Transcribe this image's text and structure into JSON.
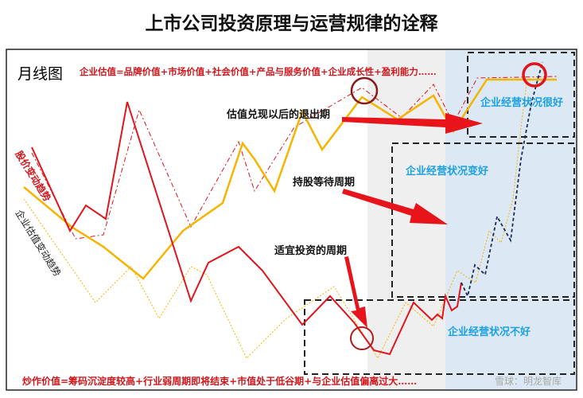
{
  "title": "上市公司投资原理与运营规律的诠释",
  "chart_label": "月线图",
  "valuation_formula": "企业估值=品牌价值+市场价值+社会价值+产品与服务价值+企业成长性+盈利能力……",
  "speculation_formula": "炒作价值=筹码沉淀度较高+行业弱周期即将结束+市值处于低谷期+与企业估值偏离过大……",
  "series_labels": {
    "price": "股价变动趋势",
    "valuation": "企业估值变动趋势"
  },
  "annotations": {
    "exit_period": "估值兑现以后的退出期",
    "holding_period": "持股等待周期",
    "invest_period": "适宜投资的周期"
  },
  "zones": {
    "very_good": "企业经营状况很好",
    "improving": "企业经营状况变好",
    "bad": "企业经营状况不好"
  },
  "watermark": "雪球：明龙智库",
  "colors": {
    "price": "#e0141b",
    "valuation": "#f5b400",
    "zone_label": "#1ba1e2",
    "growth": "#1a2a5a",
    "gray_zone": "#efefef",
    "blue_zone": "#dce8f4"
  }
}
